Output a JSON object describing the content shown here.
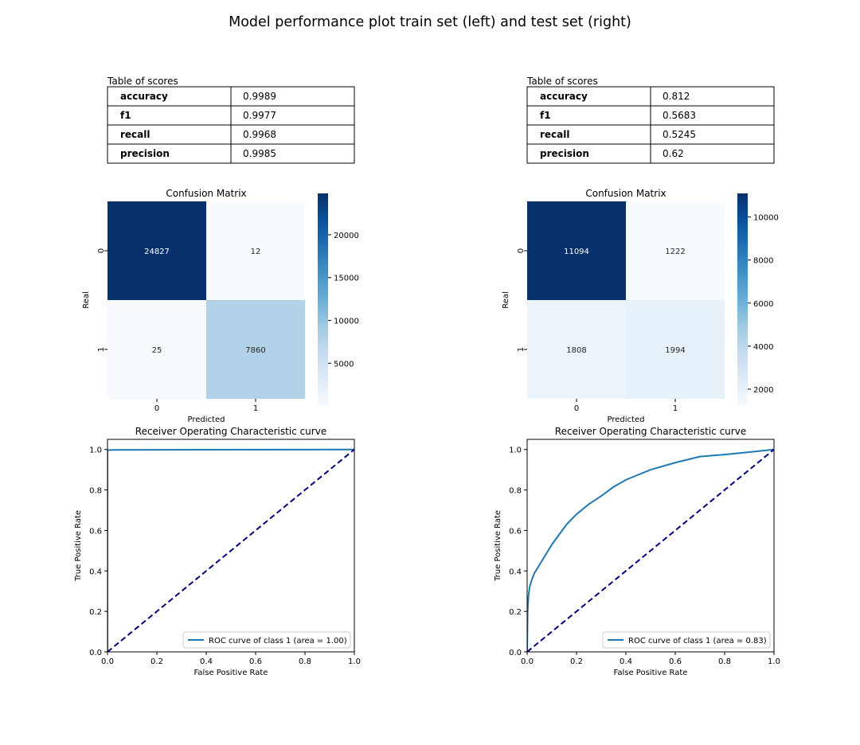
{
  "figure": {
    "title": "Model performance plot train set (left) and test set (right)"
  },
  "colors": {
    "cmap_low": "#f7fbff",
    "cmap_high": "#08306b",
    "roc_line": "#1f77b4",
    "diagonal": "#000080"
  },
  "chart_data": [
    {
      "type": "table",
      "panel": "train",
      "title": "Table of scores",
      "rows": [
        {
          "label": "accuracy",
          "value": "0.9989"
        },
        {
          "label": "f1",
          "value": "0.9977"
        },
        {
          "label": "recall",
          "value": "0.9968"
        },
        {
          "label": "precision",
          "value": "0.9985"
        }
      ]
    },
    {
      "type": "table",
      "panel": "test",
      "title": "Table of scores",
      "rows": [
        {
          "label": "accuracy",
          "value": "0.812"
        },
        {
          "label": "f1",
          "value": "0.5683"
        },
        {
          "label": "recall",
          "value": "0.5245"
        },
        {
          "label": "precision",
          "value": "0.62"
        }
      ]
    },
    {
      "type": "heatmap",
      "panel": "train",
      "title": "Confusion Matrix",
      "xlabel": "Predicted",
      "ylabel": "Real",
      "x_categories": [
        "0",
        "1"
      ],
      "y_categories": [
        "0",
        "1"
      ],
      "values": [
        [
          24827,
          12
        ],
        [
          25,
          7860
        ]
      ],
      "colorbar": {
        "vmin": 12,
        "vmax": 24827,
        "ticks": [
          5000,
          10000,
          15000,
          20000
        ],
        "tick_labels": [
          "5000",
          "10000",
          "15000",
          "20000"
        ]
      }
    },
    {
      "type": "heatmap",
      "panel": "test",
      "title": "Confusion Matrix",
      "xlabel": "Predicted",
      "ylabel": "Real",
      "x_categories": [
        "0",
        "1"
      ],
      "y_categories": [
        "0",
        "1"
      ],
      "values": [
        [
          11094,
          1222
        ],
        [
          1808,
          1994
        ]
      ],
      "colorbar": {
        "vmin": 1222,
        "vmax": 11094,
        "ticks": [
          2000,
          4000,
          6000,
          8000,
          10000
        ],
        "tick_labels": [
          "2000",
          "4000",
          "6000",
          "8000",
          "10000"
        ]
      }
    },
    {
      "type": "line",
      "panel": "train",
      "title": "Receiver Operating Characteristic curve",
      "xlabel": "False Positive Rate",
      "ylabel": "True Positive Rate",
      "xlim": [
        0,
        1
      ],
      "ylim": [
        0,
        1.05
      ],
      "xticks": [
        "0.0",
        "0.2",
        "0.4",
        "0.6",
        "0.8",
        "1.0"
      ],
      "yticks": [
        "0.0",
        "0.2",
        "0.4",
        "0.6",
        "0.8",
        "1.0"
      ],
      "legend_position": "lower-right",
      "series": [
        {
          "name": "ROC curve of class 1 (area = 1.00)",
          "x": [
            0,
            0,
            0.005,
            0.02,
            1.0
          ],
          "y": [
            0,
            0.996,
            0.997,
            0.998,
            1.0
          ]
        },
        {
          "x": [
            0,
            1
          ],
          "y": [
            0,
            1
          ],
          "dashed": true
        }
      ]
    },
    {
      "type": "line",
      "panel": "test",
      "title": "Receiver Operating Characteristic curve",
      "xlabel": "False Positive Rate",
      "ylabel": "True Positive Rate",
      "xlim": [
        0,
        1
      ],
      "ylim": [
        0,
        1.05
      ],
      "xticks": [
        "0.0",
        "0.2",
        "0.4",
        "0.6",
        "0.8",
        "1.0"
      ],
      "yticks": [
        "0.0",
        "0.2",
        "0.4",
        "0.6",
        "0.8",
        "1.0"
      ],
      "legend_position": "lower-right",
      "series": [
        {
          "name": "ROC curve of class 1 (area = 0.83)",
          "x": [
            0,
            0.002,
            0.005,
            0.01,
            0.02,
            0.03,
            0.05,
            0.07,
            0.1,
            0.13,
            0.16,
            0.2,
            0.25,
            0.3,
            0.35,
            0.4,
            0.45,
            0.5,
            0.6,
            0.7,
            0.8,
            0.9,
            1.0
          ],
          "y": [
            0,
            0.2,
            0.27,
            0.32,
            0.36,
            0.39,
            0.43,
            0.47,
            0.53,
            0.58,
            0.63,
            0.68,
            0.73,
            0.77,
            0.815,
            0.85,
            0.875,
            0.9,
            0.935,
            0.965,
            0.975,
            0.987,
            1.0
          ]
        },
        {
          "x": [
            0,
            1
          ],
          "y": [
            0,
            1
          ],
          "dashed": true
        }
      ]
    }
  ]
}
